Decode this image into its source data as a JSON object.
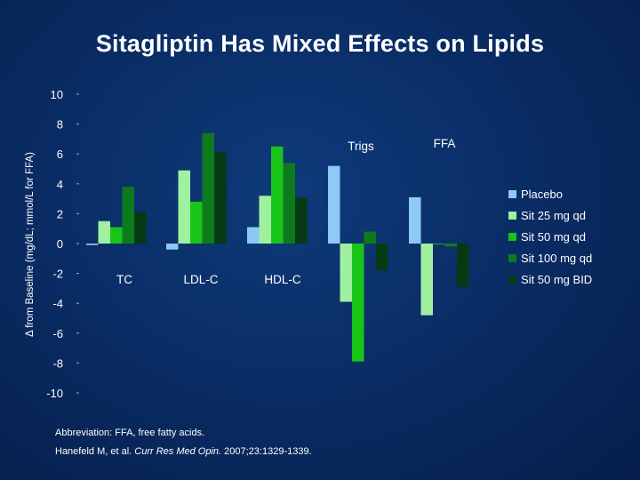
{
  "title": "Sitagliptin Has Mixed Effects on Lipids",
  "footer": {
    "abbreviation": "Abbreviation: FFA, free fatty acids.",
    "citation_authors": "Hanefeld M, et al.",
    "citation_journal": "Curr Res Med Opin.",
    "citation_details": "2007;23:1329-1339."
  },
  "chart_data": {
    "type": "bar",
    "title": "Sitagliptin Has Mixed Effects on Lipids",
    "ylabel": "Δ from Baseline (mg/dL; mmol/L for FFA)",
    "xlabel": "",
    "ylim": [
      -10,
      10
    ],
    "yticks": [
      10,
      8,
      6,
      4,
      2,
      0,
      -2,
      -4,
      -6,
      -8,
      -10
    ],
    "yticklabels": [
      "10",
      "8",
      "6",
      "4",
      "2",
      "0",
      "-2",
      "-4",
      "-6",
      "-8",
      "-10"
    ],
    "categories": [
      "TC",
      "LDL-C",
      "HDL-C",
      "Trigs",
      "FFA"
    ],
    "series": [
      {
        "name": "Placebo",
        "color": "#8ec8f5",
        "values": [
          -0.1,
          -0.4,
          1.1,
          5.2,
          3.1
        ]
      },
      {
        "name": "Sit 25 mg qd",
        "color": "#9ff09f",
        "values": [
          1.5,
          4.9,
          3.2,
          -3.9,
          -4.8
        ]
      },
      {
        "name": "Sit 50 mg qd",
        "color": "#19c419",
        "values": [
          1.1,
          2.8,
          6.5,
          -7.9,
          0.0
        ]
      },
      {
        "name": "Sit 100 mg qd",
        "color": "#0e7a1e",
        "values": [
          3.8,
          7.4,
          5.4,
          0.8,
          -0.2
        ]
      },
      {
        "name": "Sit 50 mg BID",
        "color": "#063a12",
        "values": [
          2.1,
          6.1,
          3.1,
          -1.8,
          -2.9
        ]
      }
    ],
    "legend_position": "right",
    "grid": false
  }
}
